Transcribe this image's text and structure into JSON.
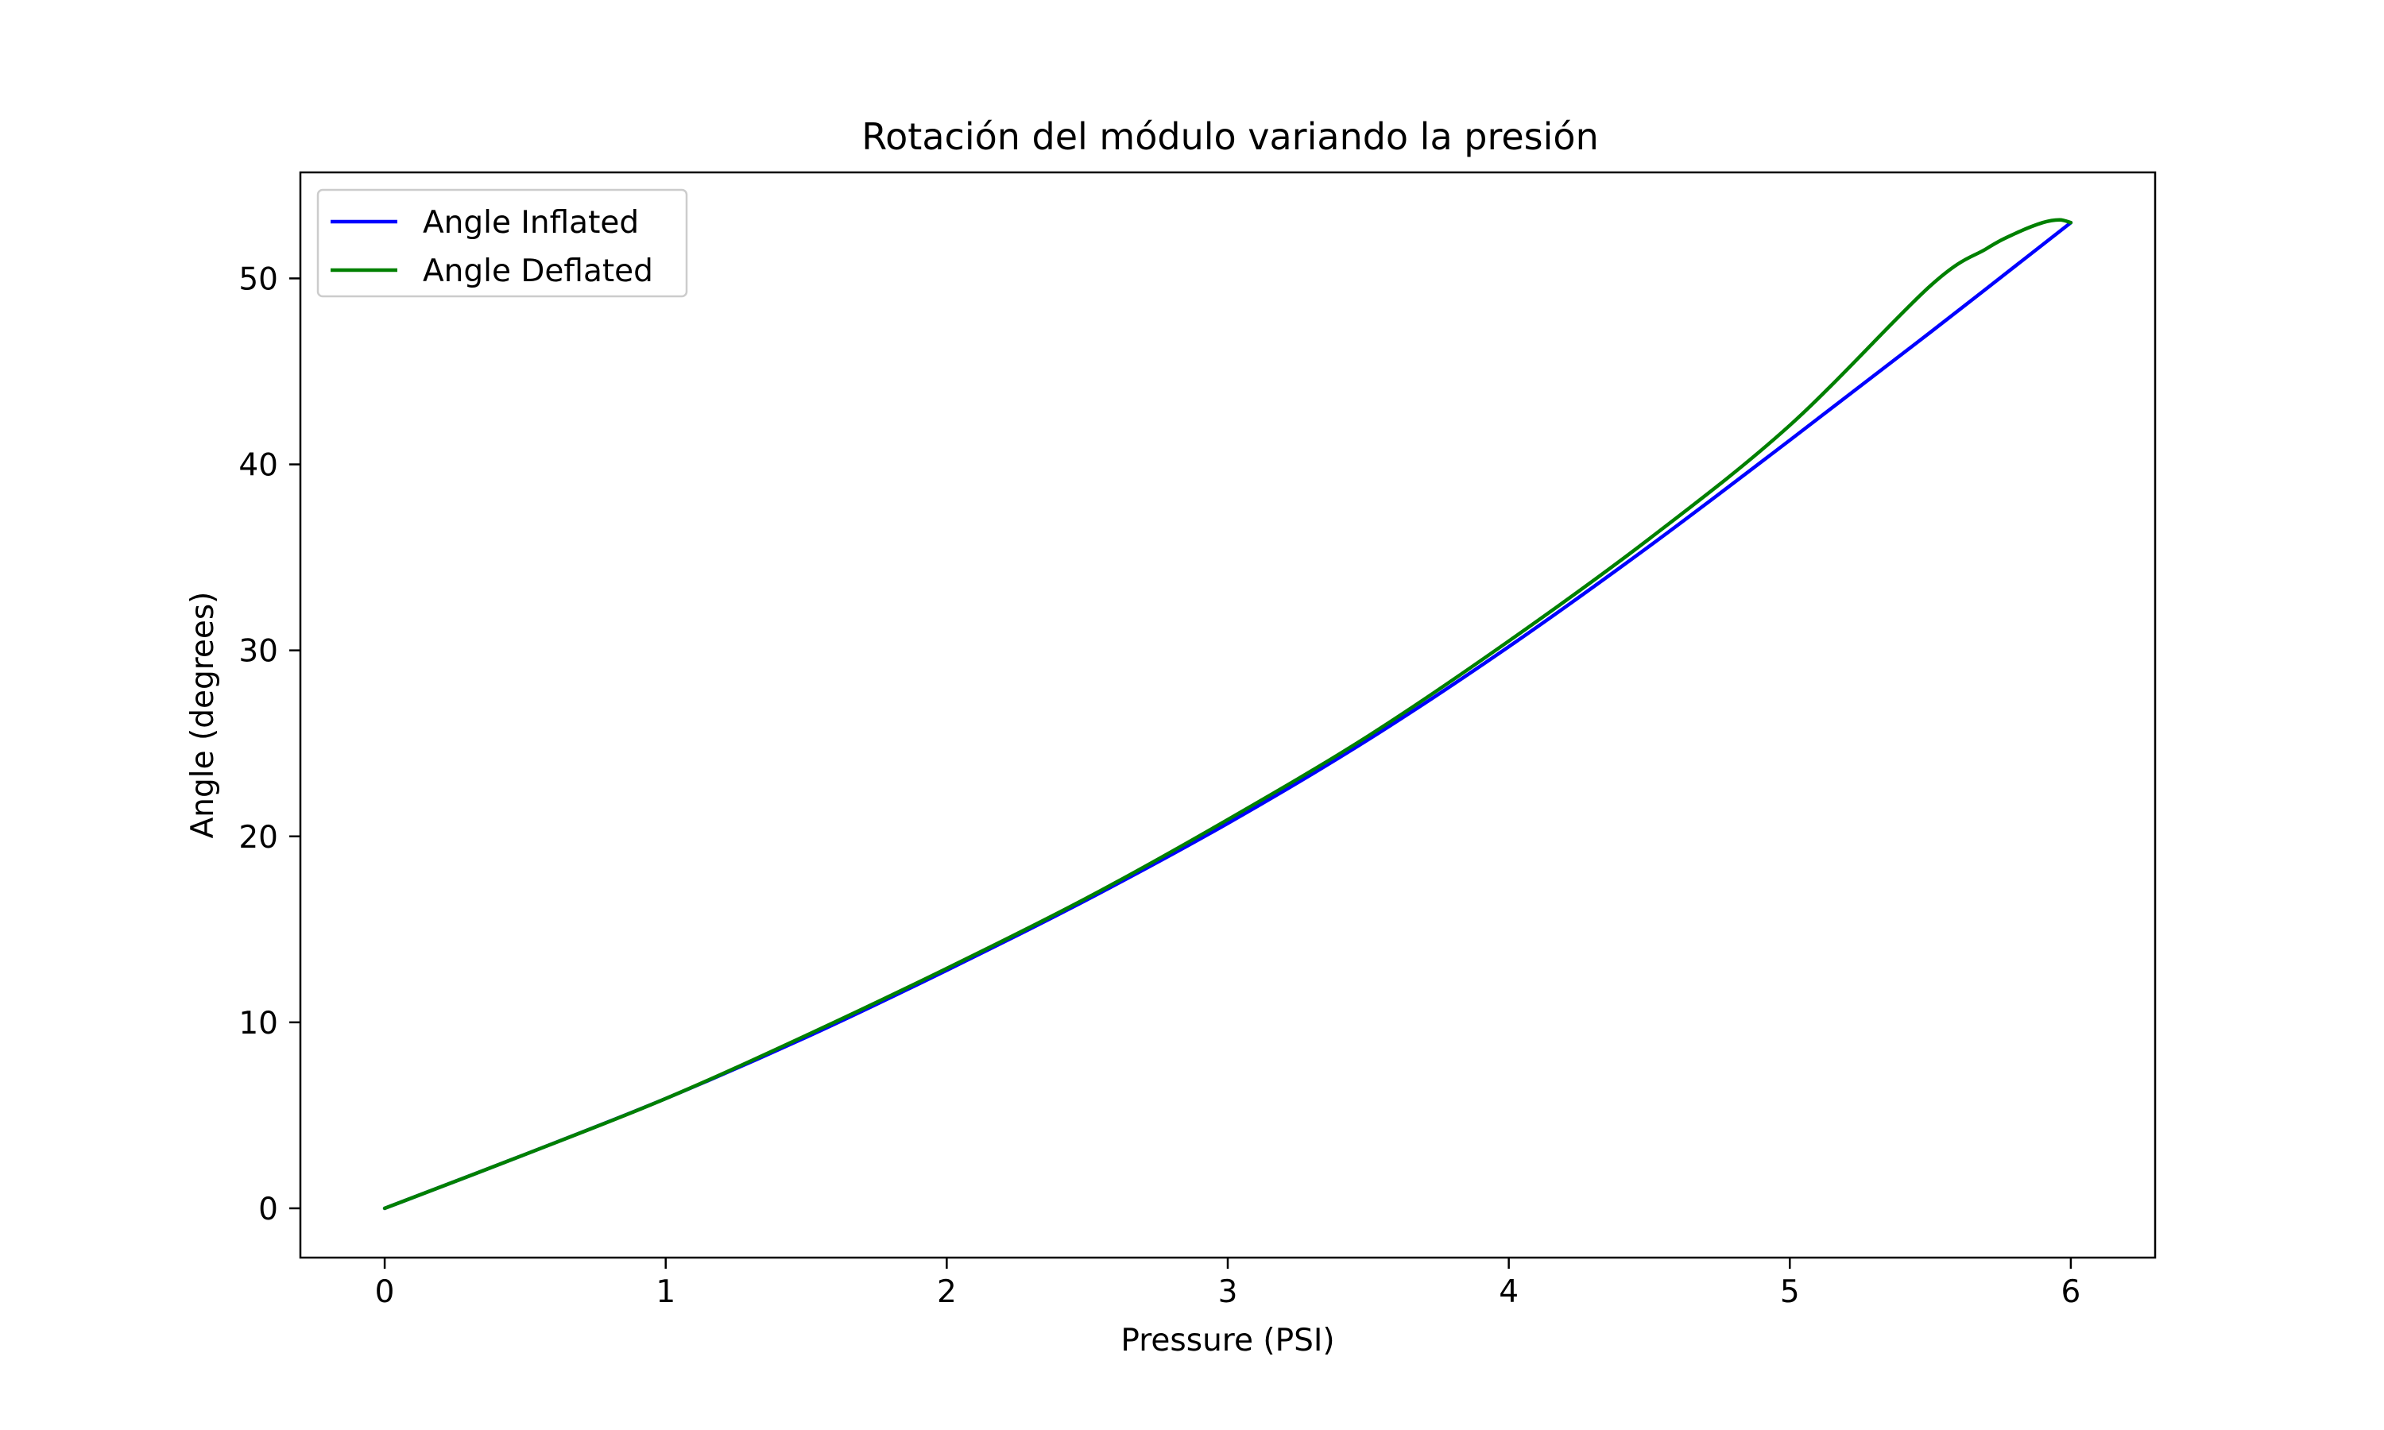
{
  "chart_data": {
    "type": "line",
    "title": "Rotación del módulo variando la presión",
    "xlabel": "Pressure (PSI)",
    "ylabel": "Angle (degrees)",
    "xlim": [
      -0.3,
      6.3
    ],
    "ylim": [
      -2.65,
      55.7
    ],
    "xticks": [
      0,
      1,
      2,
      3,
      4,
      5,
      6
    ],
    "yticks": [
      0,
      10,
      20,
      30,
      40,
      50
    ],
    "grid": false,
    "legend_position": "upper-left",
    "series": [
      {
        "name": "Angle Inflated",
        "color": "#0000ff",
        "points": [
          [
            0,
            0
          ],
          [
            0.5,
            2.9
          ],
          [
            1,
            5.9
          ],
          [
            1.5,
            9.2
          ],
          [
            2,
            12.8
          ],
          [
            2.5,
            16.6
          ],
          [
            3,
            20.7
          ],
          [
            3.5,
            25.2
          ],
          [
            4,
            30.2
          ],
          [
            4.5,
            35.6
          ],
          [
            5,
            41.3
          ],
          [
            5.5,
            47.1
          ],
          [
            6,
            53.0
          ]
        ]
      },
      {
        "name": "Angle Deflated",
        "color": "#008000",
        "points": [
          [
            6,
            53.0
          ],
          [
            5.96,
            53.15
          ],
          [
            5.9,
            53.0
          ],
          [
            5.8,
            52.4
          ],
          [
            5.7,
            51.6
          ],
          [
            5.5,
            49.6
          ],
          [
            5,
            42.1
          ],
          [
            4.5,
            36.0
          ],
          [
            4,
            30.5
          ],
          [
            3.5,
            25.4
          ],
          [
            3,
            20.9
          ],
          [
            2.5,
            16.7
          ],
          [
            2,
            12.9
          ],
          [
            1.5,
            9.3
          ],
          [
            1,
            5.9
          ],
          [
            0.5,
            2.9
          ],
          [
            0,
            0
          ]
        ]
      }
    ]
  }
}
